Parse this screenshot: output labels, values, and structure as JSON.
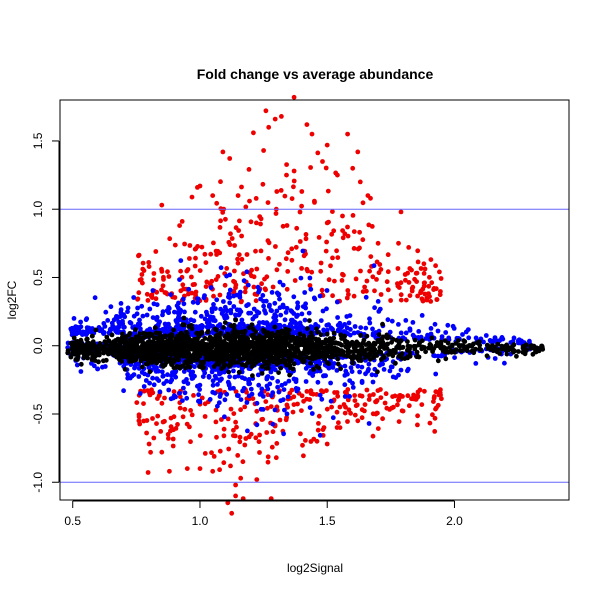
{
  "chart_data": {
    "type": "scatter",
    "title": "Fold change vs average abundance",
    "xlabel": "log2Signal",
    "ylabel": "log2FC",
    "xlim": [
      0.45,
      2.45
    ],
    "ylim": [
      -1.13,
      1.8
    ],
    "x_ticks": [
      0.5,
      1.0,
      1.5,
      2.0
    ],
    "x_tick_labels": [
      "0.5",
      "1.0",
      "1.5",
      "2.0"
    ],
    "y_ticks": [
      -1.0,
      -0.5,
      0.0,
      0.5,
      1.0,
      1.5
    ],
    "y_tick_labels": [
      "-1.0",
      "-0.5",
      "0.0",
      "0.5",
      "1.0",
      "1.5"
    ],
    "reference_lines": [
      {
        "axis": "y",
        "value": 1.0,
        "color": "#6666ff"
      },
      {
        "axis": "y",
        "value": -1.0,
        "color": "#6666ff"
      }
    ],
    "grid": false,
    "legend": "none",
    "series": [
      {
        "color": "#000000",
        "band_description": "bulk of points, |log2FC| small",
        "x_range": [
          0.48,
          2.35
        ],
        "spread_profile": [
          [
            0.5,
            0.06
          ],
          [
            1.0,
            0.12
          ],
          [
            1.5,
            0.1
          ],
          [
            2.0,
            0.06
          ],
          [
            2.35,
            0.03
          ]
        ],
        "approx_count": 2000
      },
      {
        "color": "#0000ff",
        "band_description": "moderate fold change points",
        "x_range": [
          0.48,
          2.3
        ],
        "spread_profile": [
          [
            0.5,
            0.1
          ],
          [
            1.0,
            0.3
          ],
          [
            1.5,
            0.3
          ],
          [
            2.0,
            0.12
          ],
          [
            2.3,
            0.05
          ]
        ],
        "approx_count": 1500
      },
      {
        "color": "#ee0000",
        "band_description": "large fold change points",
        "x_range": [
          0.75,
          1.95
        ],
        "points": [
          [
            1.37,
            1.82
          ],
          [
            1.32,
            1.68
          ],
          [
            1.42,
            1.62
          ],
          [
            1.44,
            1.55
          ],
          [
            1.21,
            1.56
          ],
          [
            1.27,
            1.6
          ],
          [
            1.25,
            1.43
          ],
          [
            1.09,
            1.42
          ],
          [
            1.62,
            1.42
          ],
          [
            1.58,
            1.55
          ],
          [
            1.5,
            1.47
          ],
          [
            1.54,
            1.25
          ],
          [
            1.6,
            1.3
          ],
          [
            1.66,
            1.1
          ],
          [
            1.67,
            1.08
          ],
          [
            1.63,
            1.2
          ],
          [
            1.37,
            1.28
          ],
          [
            1.34,
            1.25
          ],
          [
            1.4,
            1.13
          ],
          [
            1.45,
            1.05
          ],
          [
            1.0,
            1.17
          ],
          [
            0.99,
            1.16
          ],
          [
            1.05,
            1.1
          ],
          [
            1.15,
            1.1
          ],
          [
            1.3,
            1.0
          ],
          [
            1.56,
            0.95
          ],
          [
            1.79,
            0.98
          ],
          [
            0.85,
            1.03
          ],
          [
            0.92,
            0.88
          ],
          [
            1.12,
            0.82
          ],
          [
            1.24,
            0.93
          ],
          [
            1.38,
            0.86
          ],
          [
            1.5,
            0.9
          ],
          [
            1.7,
            0.75
          ],
          [
            1.78,
            0.75
          ],
          [
            1.82,
            0.72
          ],
          [
            1.88,
            0.6
          ],
          [
            1.92,
            0.42
          ],
          [
            0.8,
            0.58
          ],
          [
            0.78,
            0.55
          ],
          [
            0.95,
            -0.9
          ],
          [
            1.0,
            -0.9
          ],
          [
            1.05,
            -0.92
          ],
          [
            1.12,
            -0.88
          ],
          [
            1.14,
            -1.02
          ],
          [
            1.17,
            -1.12
          ],
          [
            1.14,
            -1.1
          ],
          [
            1.28,
            -1.12
          ],
          [
            1.16,
            -0.97
          ],
          [
            0.88,
            -0.92
          ],
          [
            0.85,
            -0.78
          ],
          [
            0.8,
            -0.72
          ],
          [
            1.3,
            -0.82
          ],
          [
            1.5,
            -0.72
          ],
          [
            1.55,
            -0.6
          ],
          [
            1.62,
            -0.55
          ],
          [
            1.76,
            -0.45
          ],
          [
            1.78,
            -0.4
          ],
          [
            0.76,
            -0.55
          ],
          [
            1.46,
            -0.7
          ]
        ],
        "approx_count": 600
      }
    ]
  }
}
